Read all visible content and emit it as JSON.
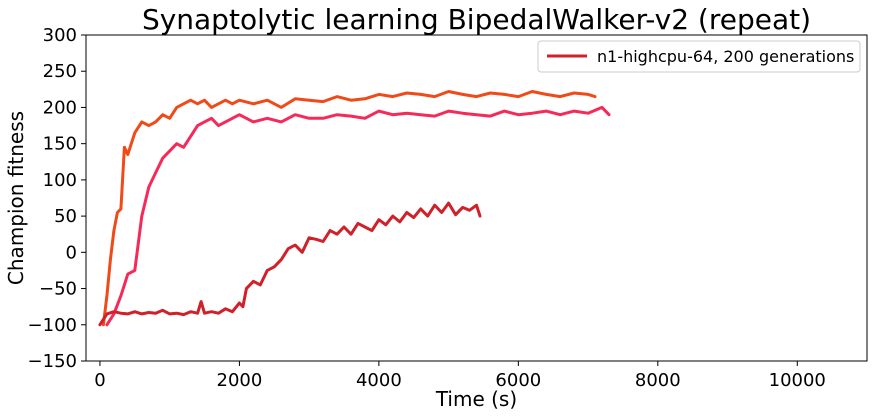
{
  "chart_data": {
    "type": "line",
    "title": "Synaptolytic learning BipedalWalker-v2 (repeat)",
    "xlabel": "Time (s)",
    "ylabel": "Champion fitness",
    "xlim": [
      -200,
      11000
    ],
    "ylim": [
      -150,
      300
    ],
    "xticks": [
      0,
      2000,
      4000,
      6000,
      8000,
      10000
    ],
    "yticks": [
      -150,
      -100,
      -50,
      0,
      50,
      100,
      150,
      200,
      250,
      300
    ],
    "grid": false,
    "legend": {
      "placement": "top-right",
      "entries": [
        "n1-highcpu-64, 200 generations"
      ]
    },
    "series": [
      {
        "name": "n1-highcpu-64, 200 generations",
        "color": "#d0202a",
        "x": [
          0,
          100,
          200,
          300,
          400,
          500,
          600,
          700,
          800,
          900,
          1000,
          1100,
          1200,
          1300,
          1400,
          1450,
          1500,
          1600,
          1700,
          1800,
          1900,
          2000,
          2050,
          2100,
          2200,
          2300,
          2400,
          2500,
          2600,
          2700,
          2800,
          2900,
          3000,
          3100,
          3200,
          3300,
          3400,
          3500,
          3600,
          3700,
          3800,
          3900,
          4000,
          4100,
          4200,
          4300,
          4400,
          4500,
          4600,
          4700,
          4800,
          4900,
          5000,
          5100,
          5200,
          5300,
          5400,
          5450
        ],
        "y": [
          -100,
          -85,
          -82,
          -84,
          -85,
          -82,
          -85,
          -83,
          -84,
          -80,
          -85,
          -84,
          -86,
          -82,
          -84,
          -68,
          -84,
          -82,
          -84,
          -78,
          -82,
          -70,
          -75,
          -50,
          -40,
          -45,
          -25,
          -20,
          -10,
          5,
          10,
          0,
          20,
          18,
          15,
          30,
          25,
          35,
          25,
          40,
          35,
          30,
          45,
          38,
          50,
          42,
          55,
          48,
          60,
          50,
          65,
          55,
          68,
          52,
          62,
          58,
          65,
          50
        ]
      },
      {
        "name": "",
        "color": "#f04a18",
        "x": [
          50,
          100,
          150,
          200,
          250,
          300,
          350,
          400,
          450,
          500,
          600,
          700,
          800,
          900,
          1000,
          1100,
          1200,
          1300,
          1400,
          1500,
          1600,
          1700,
          1800,
          1900,
          2000,
          2200,
          2400,
          2600,
          2800,
          3000,
          3200,
          3400,
          3600,
          3800,
          4000,
          4200,
          4400,
          4600,
          4800,
          5000,
          5200,
          5400,
          5600,
          5800,
          6000,
          6200,
          6400,
          6600,
          6800,
          7000,
          7100
        ],
        "y": [
          -100,
          -60,
          -10,
          30,
          55,
          60,
          145,
          135,
          150,
          165,
          180,
          175,
          180,
          190,
          185,
          200,
          205,
          210,
          205,
          210,
          200,
          205,
          210,
          205,
          210,
          205,
          210,
          200,
          212,
          210,
          208,
          215,
          210,
          212,
          218,
          215,
          220,
          218,
          215,
          222,
          218,
          215,
          220,
          218,
          215,
          222,
          218,
          215,
          220,
          218,
          215
        ]
      },
      {
        "name": "",
        "color": "#f52a58",
        "x": [
          100,
          200,
          300,
          400,
          500,
          600,
          700,
          800,
          900,
          1000,
          1100,
          1200,
          1300,
          1400,
          1500,
          1600,
          1700,
          1800,
          1900,
          2000,
          2200,
          2400,
          2600,
          2800,
          3000,
          3200,
          3400,
          3600,
          3800,
          4000,
          4200,
          4400,
          4600,
          4800,
          5000,
          5200,
          5400,
          5600,
          5800,
          6000,
          6200,
          6400,
          6600,
          6800,
          7000,
          7200,
          7300
        ],
        "y": [
          -100,
          -85,
          -60,
          -30,
          -25,
          50,
          90,
          110,
          130,
          140,
          150,
          145,
          160,
          175,
          180,
          185,
          175,
          180,
          185,
          190,
          180,
          185,
          180,
          190,
          185,
          185,
          190,
          188,
          185,
          195,
          190,
          192,
          190,
          188,
          195,
          192,
          190,
          188,
          195,
          190,
          192,
          195,
          190,
          195,
          192,
          200,
          190
        ]
      }
    ]
  }
}
